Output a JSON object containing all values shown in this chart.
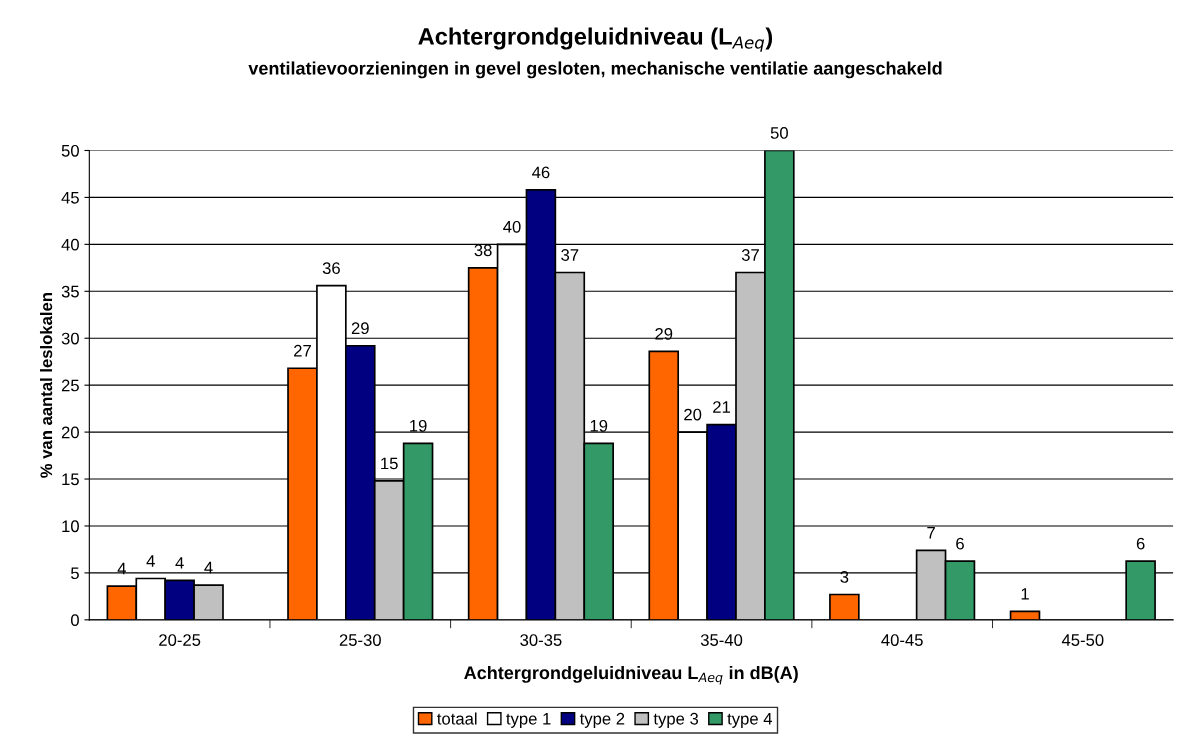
{
  "chart_data": {
    "type": "bar",
    "title": "Achtergrondgeluidniveau (L$_{Aeq}$)",
    "subtitle": "ventilatievoorzieningen in gevel gesloten, mechanische ventilatie aangeschakeld",
    "xlabel": "Achtergrondgeluidniveau L$_{Aeq}$ in dB(A)",
    "ylabel": "% van aantal leslokalen",
    "categories": [
      "20-25",
      "25-30",
      "30-35",
      "35-40",
      "40-45",
      "45-50"
    ],
    "series": [
      {
        "name": "totaal",
        "color": "#ff6600",
        "values": [
          3.6,
          26.8,
          37.5,
          28.6,
          2.7,
          0.9
        ],
        "value_labels": [
          "4",
          "27",
          "38",
          "29",
          "3",
          "1"
        ]
      },
      {
        "name": "type 1",
        "color": "#ffffff",
        "values": [
          4.4,
          35.6,
          40.0,
          20.0,
          null,
          null
        ],
        "value_labels": [
          "4",
          "36",
          "40",
          "20",
          null,
          null
        ]
      },
      {
        "name": "type 2",
        "color": "#000080",
        "values": [
          4.2,
          29.2,
          45.8,
          20.8,
          null,
          null
        ],
        "value_labels": [
          "4",
          "29",
          "46",
          "21",
          null,
          null
        ]
      },
      {
        "name": "type 3",
        "color": "#c0c0c0",
        "values": [
          3.7,
          14.8,
          37.0,
          37.0,
          7.4,
          null
        ],
        "value_labels": [
          "4",
          "15",
          "37",
          "37",
          "7",
          null
        ]
      },
      {
        "name": "type 4",
        "color": "#339966",
        "values": [
          null,
          18.8,
          18.8,
          50.0,
          6.25,
          6.25
        ],
        "value_labels": [
          null,
          "19",
          "19",
          "50",
          "6",
          "6"
        ]
      }
    ],
    "ylim": [
      0,
      50
    ],
    "yticks": [
      0,
      5,
      10,
      15,
      20,
      25,
      30,
      35,
      40,
      45,
      50
    ],
    "grid": "y",
    "legend": "bottom"
  }
}
